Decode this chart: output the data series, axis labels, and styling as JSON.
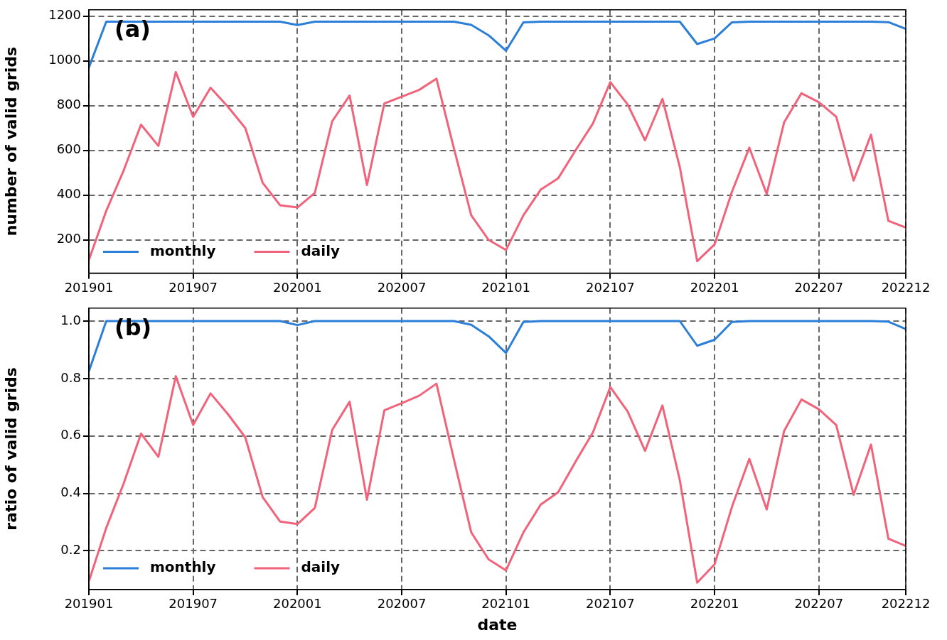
{
  "chart_data": [
    {
      "type": "line",
      "ylabel": "number of valid grids",
      "annotations": [
        "(a)"
      ],
      "grid": true,
      "legend": "bottom left",
      "categories": [
        "201901",
        null,
        null,
        null,
        null,
        null,
        "201907",
        null,
        null,
        null,
        null,
        null,
        "202001",
        null,
        null,
        null,
        null,
        null,
        "202007",
        null,
        null,
        null,
        null,
        null,
        "202101",
        null,
        null,
        null,
        null,
        null,
        "202107",
        null,
        null,
        null,
        null,
        null,
        "202201",
        null,
        null,
        null,
        null,
        null,
        "202207",
        null,
        null,
        null,
        null,
        "202212"
      ],
      "ylim": [
        52,
        1228
      ],
      "yticks": [
        200,
        400,
        600,
        800,
        1000,
        1200
      ],
      "series": [
        {
          "name": "monthly",
          "color": "#2b7fd8",
          "values": [
            970,
            1175,
            1175,
            1175,
            1175,
            1175,
            1175,
            1175,
            1175,
            1175,
            1175,
            1175,
            1160,
            1175,
            1175,
            1175,
            1175,
            1175,
            1175,
            1175,
            1175,
            1175,
            1161,
            1114,
            1045,
            1172,
            1175,
            1175,
            1175,
            1175,
            1175,
            1175,
            1175,
            1175,
            1175,
            1075,
            1100,
            1172,
            1175,
            1175,
            1175,
            1175,
            1175,
            1175,
            1175,
            1175,
            1173,
            1143
          ]
        },
        {
          "name": "daily",
          "color": "#f0637a",
          "values": [
            110,
            330,
            510,
            715,
            620,
            950,
            750,
            880,
            795,
            700,
            455,
            355,
            345,
            410,
            730,
            845,
            445,
            810,
            840,
            870,
            920,
            610,
            310,
            200,
            155,
            310,
            425,
            475,
            600,
            720,
            905,
            805,
            645,
            830,
            525,
            105,
            180,
            415,
            612,
            405,
            725,
            855,
            815,
            750,
            465,
            670,
            285,
            255
          ]
        }
      ]
    },
    {
      "type": "line",
      "xlabel": "date",
      "ylabel": "ratio of valid grids",
      "annotations": [
        "(b)"
      ],
      "grid": true,
      "legend": "bottom left",
      "categories": [
        "201901",
        null,
        null,
        null,
        null,
        null,
        "201907",
        null,
        null,
        null,
        null,
        null,
        "202001",
        null,
        null,
        null,
        null,
        null,
        "202007",
        null,
        null,
        null,
        null,
        null,
        "202101",
        null,
        null,
        null,
        null,
        null,
        "202107",
        null,
        null,
        null,
        null,
        null,
        "202201",
        null,
        null,
        null,
        null,
        null,
        "202207",
        null,
        null,
        null,
        null,
        "202212"
      ],
      "ylim": [
        0.065,
        1.045
      ],
      "yticks": [
        0.2,
        0.4,
        0.6,
        0.8,
        {
          "value": 1,
          "label": "1.0"
        }
      ],
      "series": [
        {
          "name": "monthly",
          "color": "#2b7fd8",
          "values": [
            0.825,
            1.0,
            1.0,
            1.0,
            1.0,
            1.0,
            1.0,
            1.0,
            1.0,
            1.0,
            1.0,
            1.0,
            0.986,
            1.0,
            1.0,
            1.0,
            1.0,
            1.0,
            1.0,
            1.0,
            1.0,
            1.0,
            0.987,
            0.947,
            0.889,
            0.997,
            1.0,
            1.0,
            1.0,
            1.0,
            1.0,
            1.0,
            1.0,
            1.0,
            1.0,
            0.914,
            0.935,
            0.997,
            1.0,
            1.0,
            1.0,
            1.0,
            1.0,
            1.0,
            1.0,
            1.0,
            0.998,
            0.972
          ]
        },
        {
          "name": "daily",
          "color": "#f0637a",
          "values": [
            0.094,
            0.28,
            0.434,
            0.608,
            0.527,
            0.808,
            0.638,
            0.748,
            0.676,
            0.595,
            0.387,
            0.302,
            0.293,
            0.349,
            0.621,
            0.719,
            0.378,
            0.689,
            0.714,
            0.74,
            0.782,
            0.519,
            0.264,
            0.17,
            0.132,
            0.264,
            0.361,
            0.404,
            0.51,
            0.612,
            0.77,
            0.685,
            0.548,
            0.706,
            0.446,
            0.089,
            0.153,
            0.353,
            0.52,
            0.344,
            0.617,
            0.727,
            0.693,
            0.638,
            0.395,
            0.57,
            0.242,
            0.217
          ]
        }
      ]
    }
  ]
}
